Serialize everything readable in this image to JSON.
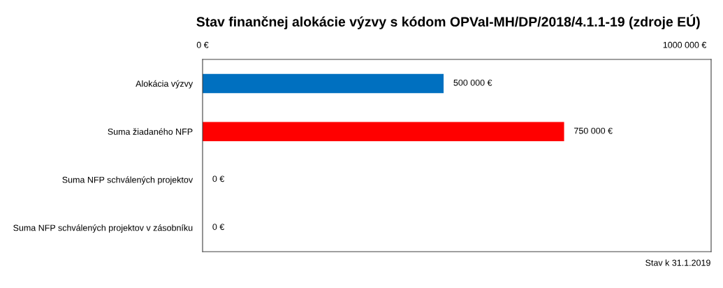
{
  "chart_data": {
    "type": "bar",
    "orientation": "horizontal",
    "title": "Stav finančnej alokácie výzvy s kódom OPVaI-MH/DP/2018/4.1.1-19 (zdroje EÚ)",
    "categories": [
      "Alokácia výzvy",
      "Suma žiadaného NFP",
      "Suma NFP schválených projektov",
      "Suma NFP schválených projektov v zásobníku"
    ],
    "values": [
      500000,
      750000,
      0,
      0
    ],
    "colors": [
      "#0070c0",
      "#ff0000",
      "#0070c0",
      "#0070c0"
    ],
    "value_labels": [
      "500 000 €",
      "750 000 €",
      "0 €",
      "0 €"
    ],
    "xlim": [
      0,
      1055000
    ],
    "xticks": [
      {
        "value": 0,
        "label": "0 €"
      },
      {
        "value": 1000000,
        "label": "1000 000 €"
      }
    ],
    "grid": false,
    "legend": false,
    "annotations": [
      "Stav k 31.1.2019"
    ]
  }
}
